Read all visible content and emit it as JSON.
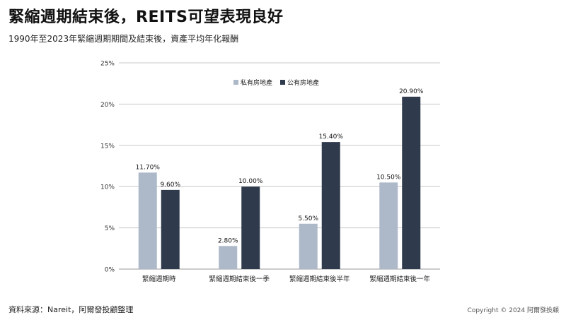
{
  "header": {
    "title": "緊縮週期結束後，REITS可望表現良好",
    "subtitle": "1990年至2023年緊縮週期期間及結束後，資產平均年化報酬"
  },
  "footer": {
    "source": "資料來源：Nareit，阿爾發投顧整理",
    "copyright": "Copyright © 2024 阿爾發投顧"
  },
  "colors": {
    "private": "#adb9c9",
    "public": "#2f3a4d",
    "grid": "#c8c8c8"
  },
  "chart_data": {
    "type": "bar",
    "categories": [
      "緊縮週期時",
      "緊縮週期結束後一季",
      "緊縮週期結束後半年",
      "緊縮週期結束後一年"
    ],
    "series": [
      {
        "name": "私有房地產",
        "values": [
          11.7,
          2.8,
          5.5,
          10.5
        ],
        "labels": [
          "11.70%",
          "2.80%",
          "5.50%",
          "10.50%"
        ]
      },
      {
        "name": "公有房地產",
        "values": [
          9.6,
          10.0,
          15.4,
          20.9
        ],
        "labels": [
          "9.60%",
          "10.00%",
          "15.40%",
          "20.90%"
        ]
      }
    ],
    "yticks": [
      "0%",
      "5%",
      "10%",
      "15%",
      "20%",
      "25%"
    ],
    "ylim": [
      0,
      25
    ],
    "grid": true,
    "legend_position": "top-center"
  }
}
